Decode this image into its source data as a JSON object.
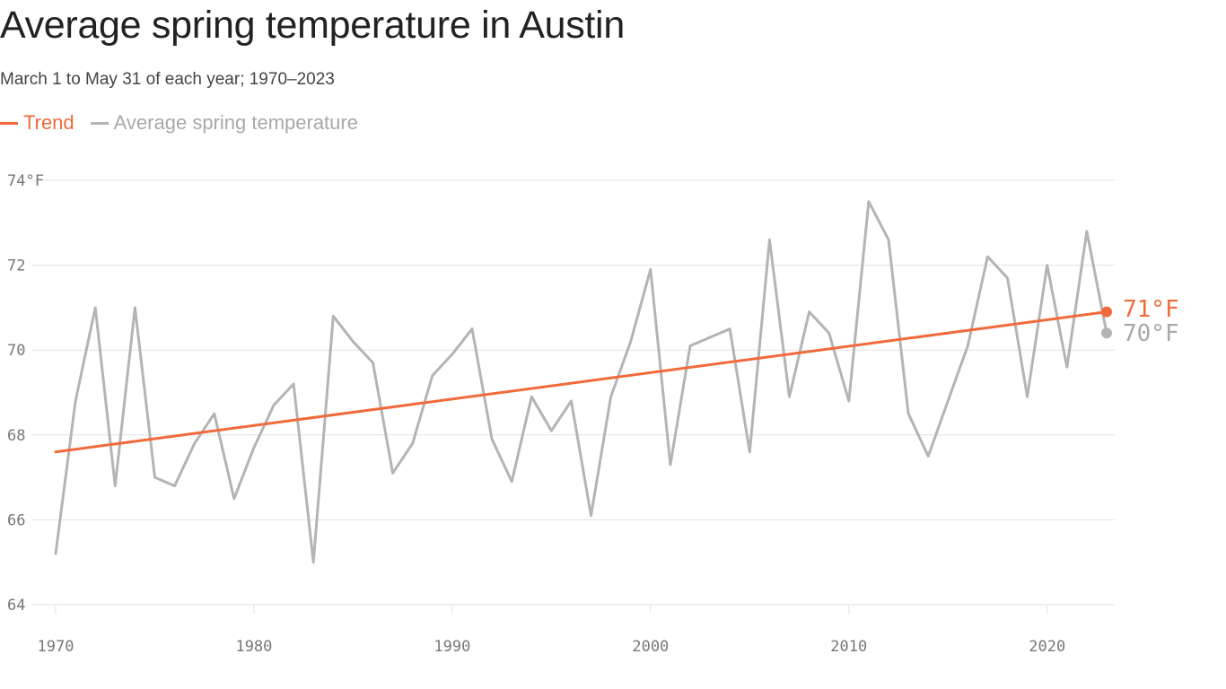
{
  "colors": {
    "trend": "#f26a3b",
    "series": "#b4b4b4",
    "grid": "#e2e2e2",
    "tick_text": "#777777"
  },
  "chart_data": {
    "type": "line",
    "title": "Average spring temperature in Austin",
    "subtitle": "March 1 to May 31 of each year; 1970–2023",
    "legend_position": "top-left",
    "grid": true,
    "xlim": [
      1970,
      2023
    ],
    "ylim": [
      64,
      74
    ],
    "x_ticks": [
      1970,
      1980,
      1990,
      2000,
      2010,
      2020
    ],
    "x_tick_labels": [
      "1970",
      "1980",
      "1990",
      "2000",
      "2010",
      "2020"
    ],
    "y_ticks": [
      64,
      66,
      68,
      70,
      72,
      74
    ],
    "y_tick_labels": [
      "64",
      "66",
      "68",
      "70",
      "72",
      "74°F"
    ],
    "series": [
      {
        "name": "Average spring temperature",
        "color": "#b4b4b4",
        "x": [
          1970,
          1971,
          1972,
          1973,
          1974,
          1975,
          1976,
          1977,
          1978,
          1979,
          1980,
          1981,
          1982,
          1983,
          1984,
          1985,
          1986,
          1987,
          1988,
          1989,
          1990,
          1991,
          1992,
          1993,
          1994,
          1995,
          1996,
          1997,
          1998,
          1999,
          2000,
          2001,
          2002,
          2003,
          2004,
          2005,
          2006,
          2007,
          2008,
          2009,
          2010,
          2011,
          2012,
          2013,
          2014,
          2015,
          2016,
          2017,
          2018,
          2019,
          2020,
          2021,
          2022,
          2023
        ],
        "values": [
          65.2,
          68.8,
          71.0,
          66.8,
          71.0,
          67.0,
          66.8,
          67.8,
          68.5,
          66.5,
          67.7,
          68.7,
          69.2,
          65.0,
          70.8,
          70.2,
          69.7,
          67.1,
          67.8,
          69.4,
          69.9,
          70.5,
          67.9,
          66.9,
          68.9,
          68.1,
          68.8,
          66.1,
          68.9,
          70.2,
          71.9,
          67.3,
          70.1,
          70.3,
          70.5,
          67.6,
          72.6,
          68.9,
          70.9,
          70.4,
          68.8,
          73.5,
          72.6,
          68.5,
          67.5,
          68.8,
          70.1,
          72.2,
          71.7,
          68.9,
          72.0,
          69.6,
          72.8,
          70.4
        ]
      },
      {
        "name": "Trend",
        "color": "#f26a3b",
        "x": [
          1970,
          2023
        ],
        "values": [
          67.6,
          70.9
        ]
      }
    ],
    "annotations": [
      {
        "series": "Trend",
        "x": 2023,
        "y": 70.9,
        "label": "71°F"
      },
      {
        "series": "Average spring temperature",
        "x": 2023,
        "y": 70.4,
        "label": "70°F"
      }
    ]
  },
  "legend": {
    "trend_label": "Trend",
    "series_label": "Average spring temperature"
  }
}
